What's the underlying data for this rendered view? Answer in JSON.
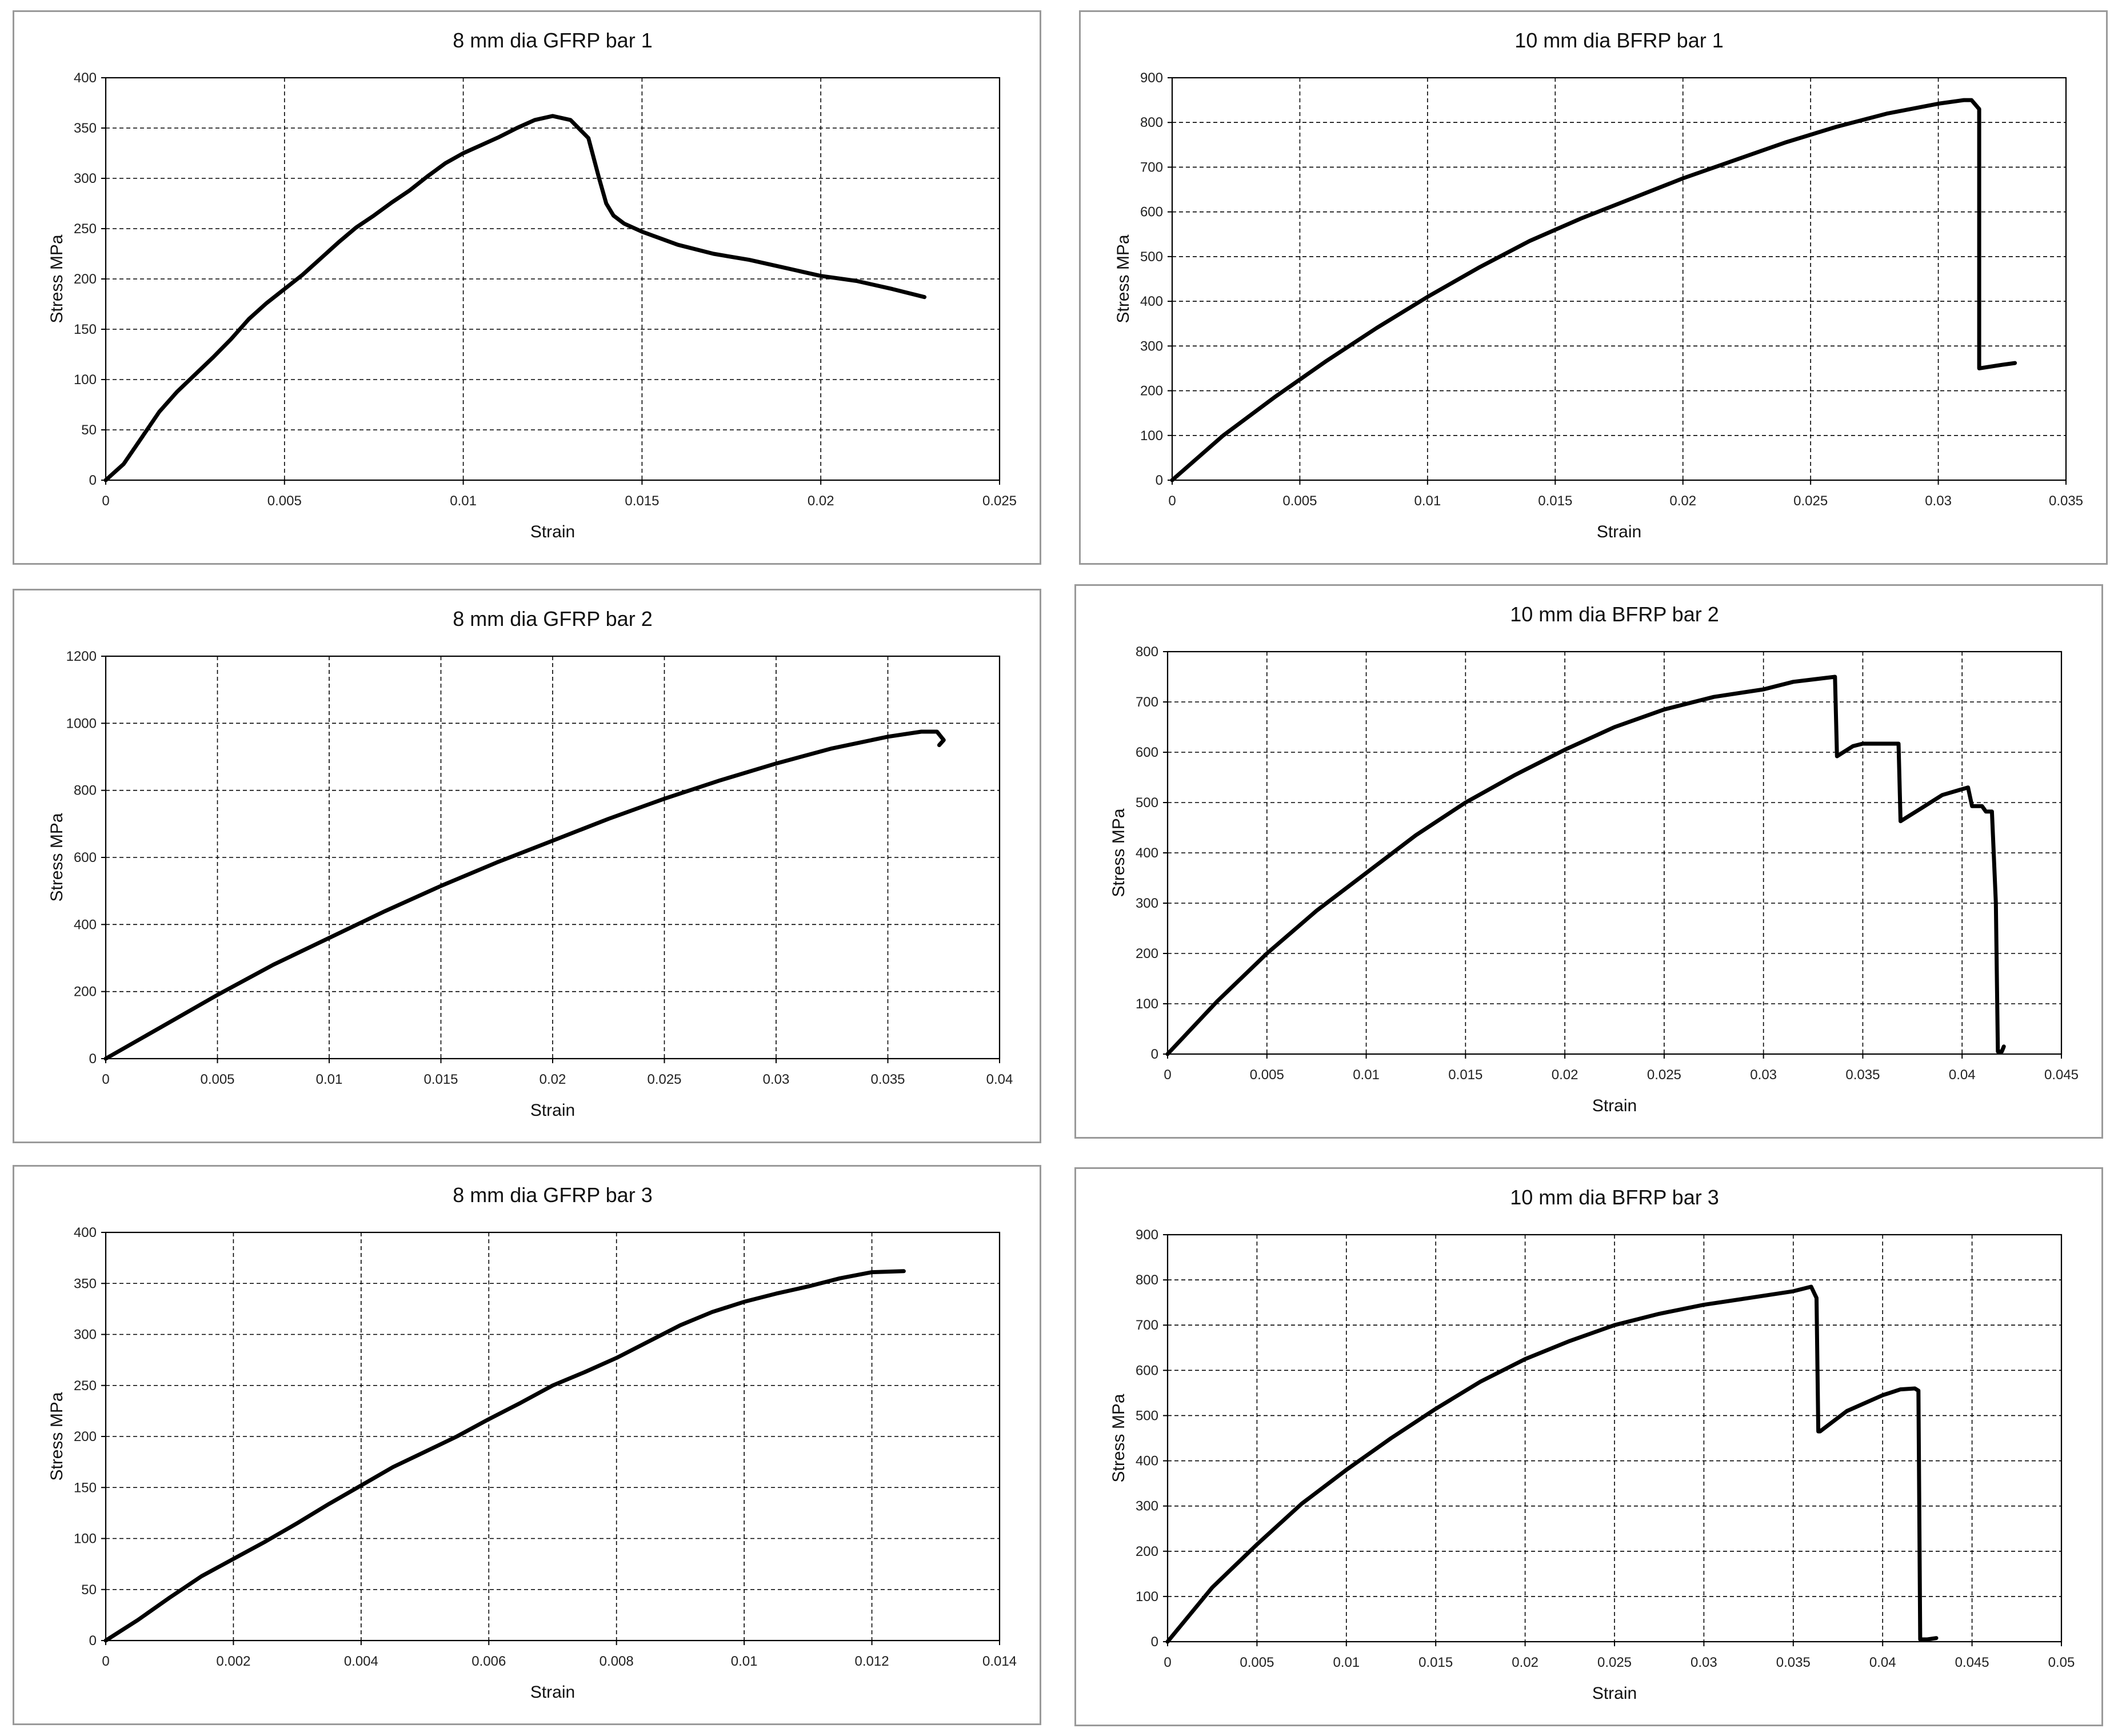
{
  "figure": {
    "background": "#ffffff",
    "line_color": "#000000",
    "grid_color": "#000000"
  },
  "chart_data": [
    {
      "id": "gfrp1",
      "type": "line",
      "title": "8 mm dia GFRP bar 1",
      "xlabel": "Strain",
      "ylabel": "Stress MPa",
      "xlim": [
        0,
        0.025
      ],
      "ylim": [
        0,
        400
      ],
      "xticks": [
        0,
        0.005,
        0.01,
        0.015,
        0.02,
        0.025
      ],
      "xtick_labels": [
        "0",
        "0.005",
        "0.01",
        "0.015",
        "0.02",
        "0.025"
      ],
      "yticks": [
        0,
        50,
        100,
        150,
        200,
        250,
        300,
        350,
        400
      ],
      "ytick_labels": [
        "0",
        "50",
        "100",
        "150",
        "200",
        "250",
        "300",
        "350",
        "400"
      ],
      "grid": true,
      "series": [
        {
          "name": "8 mm dia GFRP bar 1",
          "x": [
            0,
            0.0005,
            0.001,
            0.0015,
            0.002,
            0.0025,
            0.003,
            0.0035,
            0.004,
            0.0045,
            0.005,
            0.0055,
            0.006,
            0.0065,
            0.007,
            0.0075,
            0.008,
            0.0085,
            0.009,
            0.0095,
            0.01,
            0.0105,
            0.011,
            0.0115,
            0.012,
            0.0125,
            0.013,
            0.0135,
            0.0138,
            0.014,
            0.0142,
            0.0145,
            0.015,
            0.016,
            0.017,
            0.018,
            0.019,
            0.02,
            0.021,
            0.022,
            0.0229
          ],
          "y": [
            0,
            16,
            42,
            68,
            88,
            105,
            122,
            140,
            160,
            176,
            190,
            204,
            220,
            236,
            251,
            263,
            276,
            288,
            302,
            315,
            325,
            333,
            341,
            350,
            358,
            362,
            358,
            340,
            300,
            275,
            263,
            255,
            247,
            234,
            225,
            219,
            211,
            203,
            198,
            190,
            182
          ]
        }
      ]
    },
    {
      "id": "bfrp1",
      "type": "line",
      "title": "10 mm dia BFRP bar 1",
      "xlabel": "Strain",
      "ylabel": "Stress MPa",
      "xlim": [
        0,
        0.035
      ],
      "ylim": [
        0,
        900
      ],
      "xticks": [
        0,
        0.005,
        0.01,
        0.015,
        0.02,
        0.025,
        0.03,
        0.035
      ],
      "xtick_labels": [
        "0",
        "0.005",
        "0.01",
        "0.015",
        "0.02",
        "0.025",
        "0.03",
        "0.035"
      ],
      "yticks": [
        0,
        100,
        200,
        300,
        400,
        500,
        600,
        700,
        800,
        900
      ],
      "ytick_labels": [
        "0",
        "100",
        "200",
        "300",
        "400",
        "500",
        "600",
        "700",
        "800",
        "900"
      ],
      "grid": true,
      "series": [
        {
          "name": "10 mm dia BFRP bar 1",
          "x": [
            0,
            0.002,
            0.004,
            0.006,
            0.008,
            0.01,
            0.012,
            0.014,
            0.016,
            0.018,
            0.02,
            0.022,
            0.024,
            0.026,
            0.028,
            0.03,
            0.031,
            0.0313,
            0.0316,
            0.0316,
            0.0325,
            0.033
          ],
          "y": [
            0,
            100,
            185,
            265,
            340,
            410,
            475,
            535,
            585,
            630,
            675,
            715,
            755,
            790,
            820,
            842,
            850,
            850,
            830,
            250,
            258,
            262
          ]
        }
      ]
    },
    {
      "id": "gfrp2",
      "type": "line",
      "title": "8 mm dia GFRP bar 2",
      "xlabel": "Strain",
      "ylabel": "Stress MPa",
      "xlim": [
        0,
        0.04
      ],
      "ylim": [
        0,
        1200
      ],
      "xticks": [
        0,
        0.005,
        0.01,
        0.015,
        0.02,
        0.025,
        0.03,
        0.035,
        0.04
      ],
      "xtick_labels": [
        "0",
        "0.005",
        "0.01",
        "0.015",
        "0.02",
        "0.025",
        "0.03",
        "0.035",
        "0.04"
      ],
      "yticks": [
        0,
        200,
        400,
        600,
        800,
        1000,
        1200
      ],
      "ytick_labels": [
        "0",
        "200",
        "400",
        "600",
        "800",
        "1000",
        "1200"
      ],
      "grid": true,
      "series": [
        {
          "name": "8 mm dia GFRP bar 2",
          "x": [
            0,
            0.0025,
            0.005,
            0.0075,
            0.01,
            0.0125,
            0.015,
            0.0175,
            0.02,
            0.0225,
            0.025,
            0.0275,
            0.03,
            0.0325,
            0.035,
            0.0365,
            0.0372,
            0.0375,
            0.0373
          ],
          "y": [
            0,
            95,
            190,
            280,
            360,
            440,
            515,
            585,
            650,
            715,
            775,
            830,
            880,
            925,
            960,
            975,
            975,
            950,
            935
          ]
        }
      ]
    },
    {
      "id": "bfrp2",
      "type": "line",
      "title": "10 mm dia BFRP bar 2",
      "xlabel": "Strain",
      "ylabel": "Stress MPa",
      "xlim": [
        0,
        0.045
      ],
      "ylim": [
        0,
        800
      ],
      "xticks": [
        0,
        0.005,
        0.01,
        0.015,
        0.02,
        0.025,
        0.03,
        0.035,
        0.04,
        0.045
      ],
      "xtick_labels": [
        "0",
        "0.005",
        "0.01",
        "0.015",
        "0.02",
        "0.025",
        "0.03",
        "0.035",
        "0.04",
        "0.045"
      ],
      "yticks": [
        0,
        100,
        200,
        300,
        400,
        500,
        600,
        700,
        800
      ],
      "ytick_labels": [
        "0",
        "100",
        "200",
        "300",
        "400",
        "500",
        "600",
        "700",
        "800"
      ],
      "grid": true,
      "series": [
        {
          "name": "10 mm dia BFRP bar 2",
          "x": [
            0,
            0.0025,
            0.005,
            0.0075,
            0.01,
            0.0125,
            0.015,
            0.0175,
            0.02,
            0.0225,
            0.025,
            0.0275,
            0.03,
            0.0315,
            0.0336,
            0.0337,
            0.0345,
            0.035,
            0.0368,
            0.0369,
            0.038,
            0.039,
            0.0403,
            0.0405,
            0.041,
            0.0412,
            0.0415,
            0.0417,
            0.0418,
            0.042,
            0.0421
          ],
          "y": [
            0,
            105,
            200,
            285,
            360,
            435,
            500,
            555,
            605,
            650,
            685,
            710,
            725,
            740,
            750,
            592,
            612,
            617,
            617,
            463,
            490,
            515,
            530,
            493,
            493,
            482,
            482,
            300,
            5,
            5,
            15
          ]
        }
      ]
    },
    {
      "id": "gfrp3",
      "type": "line",
      "title": "8 mm dia GFRP bar 3",
      "xlabel": "Strain",
      "ylabel": "Stress MPa",
      "xlim": [
        0,
        0.014
      ],
      "ylim": [
        0,
        400
      ],
      "xticks": [
        0,
        0.002,
        0.004,
        0.006,
        0.008,
        0.01,
        0.012,
        0.014
      ],
      "xtick_labels": [
        "0",
        "0.002",
        "0.004",
        "0.006",
        "0.008",
        "0.01",
        "0.012",
        "0.014"
      ],
      "yticks": [
        0,
        50,
        100,
        150,
        200,
        250,
        300,
        350,
        400
      ],
      "ytick_labels": [
        "0",
        "50",
        "100",
        "150",
        "200",
        "250",
        "300",
        "350",
        "400"
      ],
      "grid": true,
      "series": [
        {
          "name": "8 mm dia GFRP bar 3",
          "x": [
            0,
            0.0005,
            0.001,
            0.0015,
            0.002,
            0.0025,
            0.003,
            0.0035,
            0.004,
            0.0045,
            0.005,
            0.0055,
            0.006,
            0.0065,
            0.007,
            0.0075,
            0.008,
            0.0085,
            0.009,
            0.0095,
            0.01,
            0.0105,
            0.011,
            0.0115,
            0.012,
            0.0125
          ],
          "y": [
            0,
            20,
            42,
            63,
            80,
            97,
            115,
            134,
            152,
            170,
            185,
            200,
            217,
            233,
            250,
            263,
            277,
            293,
            309,
            322,
            332,
            340,
            347,
            355,
            361,
            362
          ]
        }
      ]
    },
    {
      "id": "bfrp3",
      "type": "line",
      "title": "10 mm dia BFRP bar 3",
      "xlabel": "Strain",
      "ylabel": "Stress MPa",
      "xlim": [
        0,
        0.05
      ],
      "ylim": [
        0,
        900
      ],
      "xticks": [
        0,
        0.005,
        0.01,
        0.015,
        0.02,
        0.025,
        0.03,
        0.035,
        0.04,
        0.045,
        0.05
      ],
      "xtick_labels": [
        "0",
        "0.005",
        "0.01",
        "0.015",
        "0.02",
        "0.025",
        "0.03",
        "0.035",
        "0.04",
        "0.045",
        "0.05"
      ],
      "yticks": [
        0,
        100,
        200,
        300,
        400,
        500,
        600,
        700,
        800,
        900
      ],
      "ytick_labels": [
        "0",
        "100",
        "200",
        "300",
        "400",
        "500",
        "600",
        "700",
        "800",
        "900"
      ],
      "grid": true,
      "series": [
        {
          "name": "10 mm dia BFRP bar 3",
          "x": [
            0,
            0.0025,
            0.005,
            0.0075,
            0.01,
            0.0125,
            0.015,
            0.0175,
            0.02,
            0.0225,
            0.025,
            0.0275,
            0.03,
            0.0325,
            0.035,
            0.036,
            0.0363,
            0.0364,
            0.0365,
            0.038,
            0.04,
            0.041,
            0.0418,
            0.042,
            0.0421,
            0.0425,
            0.043
          ],
          "y": [
            0,
            120,
            215,
            305,
            380,
            450,
            515,
            575,
            625,
            665,
            700,
            725,
            745,
            760,
            775,
            785,
            760,
            465,
            465,
            510,
            545,
            558,
            560,
            555,
            5,
            5,
            8
          ]
        }
      ]
    }
  ]
}
